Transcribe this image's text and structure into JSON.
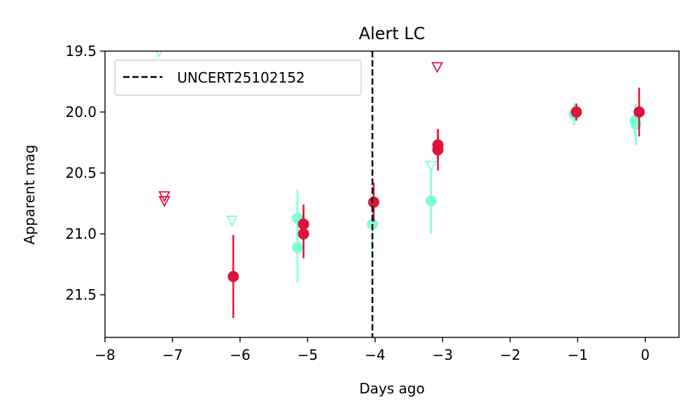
{
  "chart_data": {
    "type": "scatter",
    "title": "Alert LC",
    "xlabel": "Days ago",
    "ylabel": "Apparent mag",
    "xlim": [
      -8,
      0.5
    ],
    "ylim": [
      21.85,
      19.5
    ],
    "y_inverted": true,
    "xticks": [
      -8,
      -7,
      -6,
      -5,
      -4,
      -3,
      -2,
      -1,
      0
    ],
    "xtick_labels": [
      "−8",
      "−7",
      "−6",
      "−5",
      "−4",
      "−3",
      "−2",
      "−1",
      "0"
    ],
    "yticks": [
      19.5,
      20.0,
      20.5,
      21.0,
      21.5
    ],
    "ytick_labels": [
      "19.5",
      "20.0",
      "20.5",
      "21.0",
      "21.5"
    ],
    "grid": false,
    "legend": {
      "placement": "upper-left",
      "entries": [
        "UNCERT25102152"
      ]
    },
    "vline": {
      "x": -4.04,
      "label": "UNCERT25102152",
      "color": "#000000",
      "style": "dashed"
    },
    "series": [
      {
        "color": "#7fffd4",
        "detections": [
          {
            "x": -5.15,
            "y": 20.87,
            "err": 0.23
          },
          {
            "x": -5.15,
            "y": 21.11,
            "err": 0.29
          },
          {
            "x": -4.04,
            "y": 20.92,
            "err": 0.21
          },
          {
            "x": -3.17,
            "y": 20.73,
            "err": 0.27
          },
          {
            "x": -1.05,
            "y": 20.02,
            "err": 0.09
          },
          {
            "x": -0.15,
            "y": 20.07,
            "err": 0.13
          },
          {
            "x": -0.14,
            "y": 20.1,
            "err": 0.17
          }
        ],
        "upper_limits": [
          {
            "x": -7.2,
            "y": 19.5
          },
          {
            "x": -6.12,
            "y": 20.89
          },
          {
            "x": -3.17,
            "y": 20.44
          }
        ]
      },
      {
        "color": "#dc143c",
        "detections": [
          {
            "x": -6.1,
            "y": 21.35,
            "err": 0.34
          },
          {
            "x": -5.06,
            "y": 20.92,
            "err": 0.16
          },
          {
            "x": -5.06,
            "y": 21.0,
            "err": 0.2
          },
          {
            "x": -4.02,
            "y": 20.74,
            "err": 0.16
          },
          {
            "x": -3.07,
            "y": 20.27,
            "err": 0.13
          },
          {
            "x": -3.07,
            "y": 20.31,
            "err": 0.17
          },
          {
            "x": -1.02,
            "y": 20.0,
            "err": 0.07
          },
          {
            "x": -0.09,
            "y": 20.0,
            "err": 0.2
          }
        ],
        "upper_limits": [
          {
            "x": -7.12,
            "y": 20.69
          },
          {
            "x": -7.12,
            "y": 20.73
          },
          {
            "x": -3.08,
            "y": 19.63
          }
        ]
      }
    ]
  }
}
